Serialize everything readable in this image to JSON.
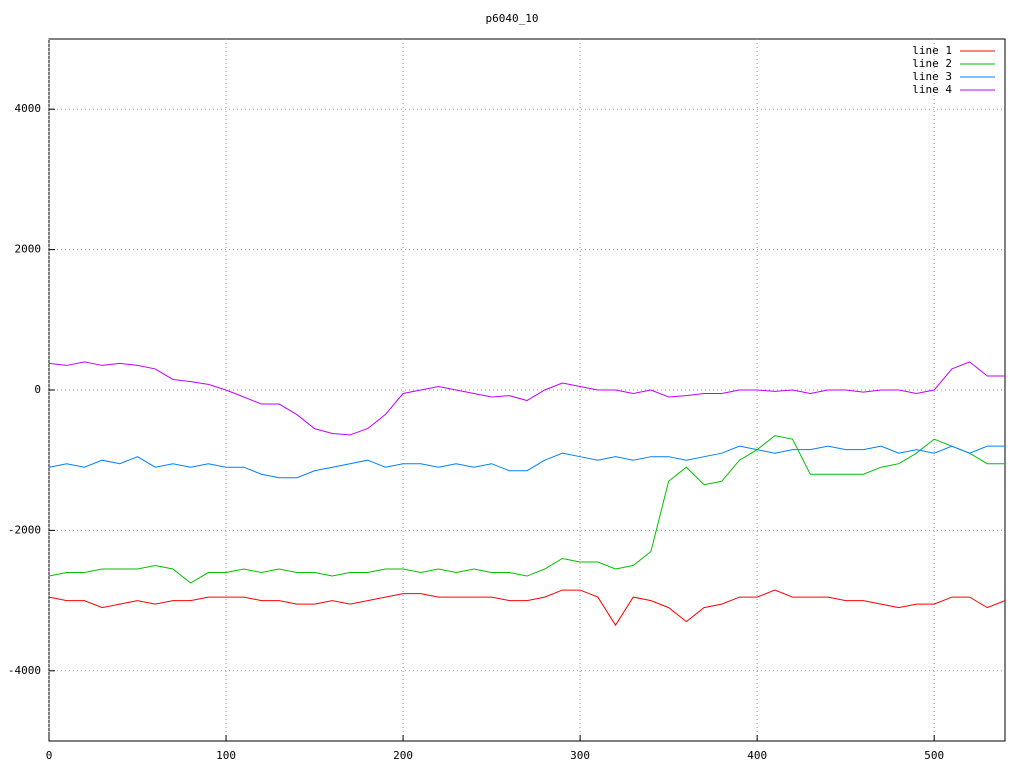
{
  "chart_data": {
    "type": "line",
    "title": "p6040_10",
    "x": [
      0,
      10,
      20,
      30,
      40,
      50,
      60,
      70,
      80,
      90,
      100,
      110,
      120,
      130,
      140,
      150,
      160,
      170,
      180,
      190,
      200,
      210,
      220,
      230,
      240,
      250,
      260,
      270,
      280,
      290,
      300,
      310,
      320,
      330,
      340,
      350,
      360,
      370,
      380,
      390,
      400,
      410,
      420,
      430,
      440,
      450,
      460,
      470,
      480,
      490,
      500,
      510,
      520,
      530,
      540
    ],
    "series": [
      {
        "name": "line 1",
        "color": "#ff0000",
        "values": [
          -2950,
          -3000,
          -3000,
          -3100,
          -3050,
          -3000,
          -3050,
          -3000,
          -3000,
          -2950,
          -2950,
          -2950,
          -3000,
          -3000,
          -3050,
          -3050,
          -3000,
          -3050,
          -3000,
          -2950,
          -2900,
          -2900,
          -2950,
          -2950,
          -2950,
          -2950,
          -3000,
          -3000,
          -2950,
          -2850,
          -2850,
          -2950,
          -3350,
          -2950,
          -3000,
          -3100,
          -3300,
          -3100,
          -3050,
          -2950,
          -2950,
          -2850,
          -2950,
          -2950,
          -2950,
          -3000,
          -3000,
          -3050,
          -3100,
          -3050,
          -3050,
          -2950,
          -2950,
          -3100,
          -3000
        ]
      },
      {
        "name": "line 2",
        "color": "#00c000",
        "values": [
          -2650,
          -2600,
          -2600,
          -2550,
          -2550,
          -2550,
          -2500,
          -2550,
          -2750,
          -2600,
          -2600,
          -2550,
          -2600,
          -2550,
          -2600,
          -2600,
          -2650,
          -2600,
          -2600,
          -2550,
          -2550,
          -2600,
          -2550,
          -2600,
          -2550,
          -2600,
          -2600,
          -2650,
          -2550,
          -2400,
          -2450,
          -2450,
          -2550,
          -2500,
          -2300,
          -1300,
          -1100,
          -1350,
          -1300,
          -1000,
          -850,
          -650,
          -700,
          -1200,
          -1200,
          -1200,
          -1200,
          -1100,
          -1050,
          -900,
          -700,
          -800,
          -900,
          -1050,
          -1050
        ]
      },
      {
        "name": "line 3",
        "color": "#0080ff",
        "values": [
          -1100,
          -1050,
          -1100,
          -1000,
          -1050,
          -950,
          -1100,
          -1050,
          -1100,
          -1050,
          -1100,
          -1100,
          -1200,
          -1250,
          -1250,
          -1150,
          -1100,
          -1050,
          -1000,
          -1100,
          -1050,
          -1050,
          -1100,
          -1050,
          -1100,
          -1050,
          -1150,
          -1150,
          -1000,
          -900,
          -950,
          -1000,
          -950,
          -1000,
          -950,
          -950,
          -1000,
          -950,
          -900,
          -800,
          -850,
          -900,
          -850,
          -850,
          -800,
          -850,
          -850,
          -800,
          -900,
          -850,
          -900,
          -800,
          -900,
          -800,
          -800
        ]
      },
      {
        "name": "line 4",
        "color": "#c000ff",
        "values": [
          380,
          350,
          400,
          350,
          380,
          350,
          300,
          150,
          120,
          80,
          0,
          -100,
          -200,
          -200,
          -350,
          -550,
          -620,
          -640,
          -550,
          -350,
          -50,
          0,
          50,
          0,
          -50,
          -100,
          -80,
          -150,
          0,
          100,
          50,
          0,
          0,
          -50,
          0,
          -100,
          -80,
          -50,
          -50,
          0,
          0,
          -20,
          0,
          -50,
          0,
          0,
          -30,
          0,
          0,
          -50,
          0,
          300,
          400,
          200,
          200
        ]
      }
    ],
    "xlim": [
      0,
      540
    ],
    "xticks": [
      0,
      100,
      200,
      300,
      400,
      500
    ],
    "ylim": [
      -5000,
      5000
    ],
    "yticks": [
      -4000,
      -2000,
      0,
      2000,
      4000
    ],
    "grid": true,
    "legend": "top-right"
  }
}
